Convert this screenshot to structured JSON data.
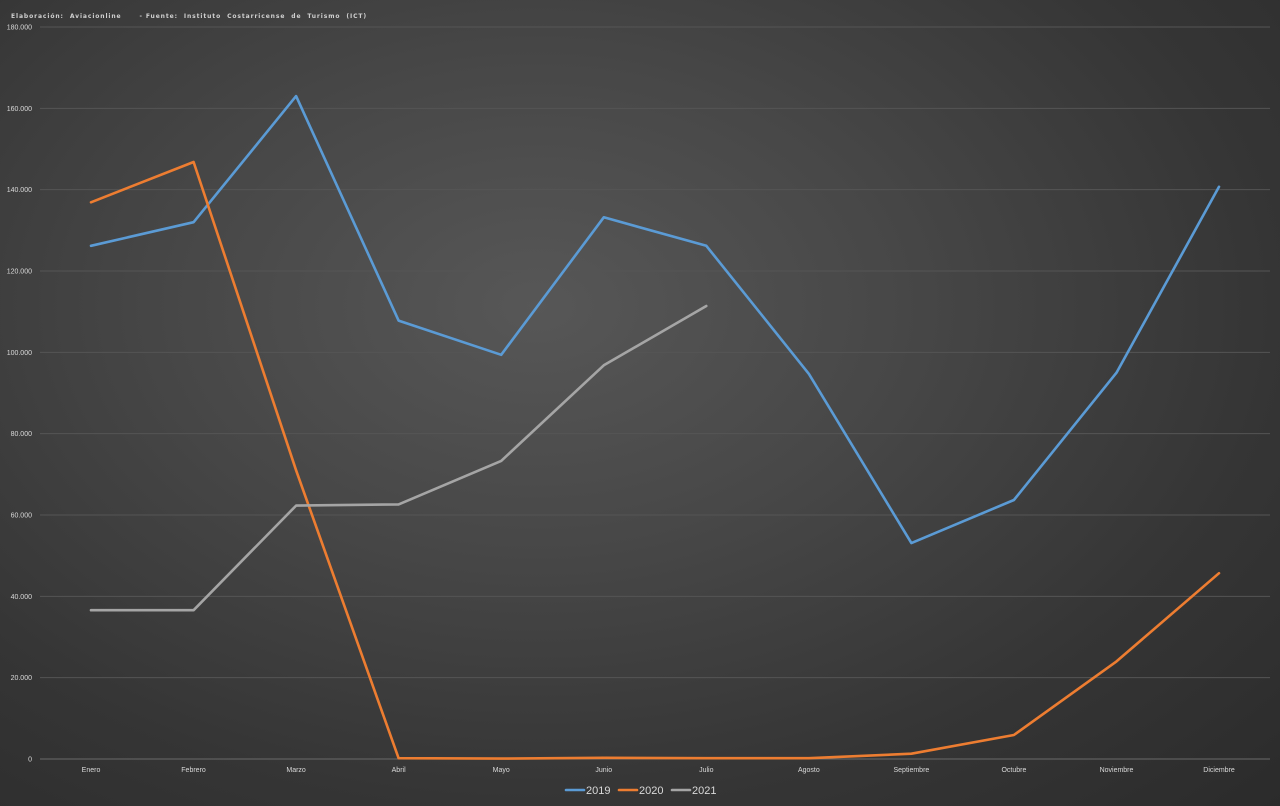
{
  "credit": "Elaboración:  Aviacionline      - Fuente:  Instituto  Costarricense  de  Turismo  (ICT)",
  "chart_data": {
    "type": "line",
    "categories": [
      "Enero",
      "Febrero",
      "Marzo",
      "Abril",
      "Mayo",
      "Junio",
      "Julio",
      "Agosto",
      "Septiembre",
      "Octubre",
      "Noviembre",
      "Diciembre"
    ],
    "yticks": [
      "0",
      "20.000",
      "40.000",
      "60.000",
      "80.000",
      "100.000",
      "120.000",
      "140.000",
      "160.000",
      "180.000"
    ],
    "ylim": [
      0,
      180000
    ],
    "grid": true,
    "legend_position": "bottom",
    "series": [
      {
        "name": "2019",
        "color": "#5b9bd5",
        "values": [
          126200,
          132000,
          163000,
          107800,
          99400,
          133200,
          126200,
          94700,
          53100,
          63700,
          95000,
          140700
        ]
      },
      {
        "name": "2020",
        "color": "#ed7d31",
        "values": [
          136900,
          146800,
          71000,
          200,
          100,
          300,
          200,
          200,
          1300,
          5900,
          24000,
          45700
        ]
      },
      {
        "name": "2021",
        "color": "#a5a5a5",
        "values": [
          36600,
          36600,
          62300,
          62600,
          73300,
          96800,
          111400,
          null,
          null,
          null,
          null,
          null
        ]
      }
    ]
  }
}
